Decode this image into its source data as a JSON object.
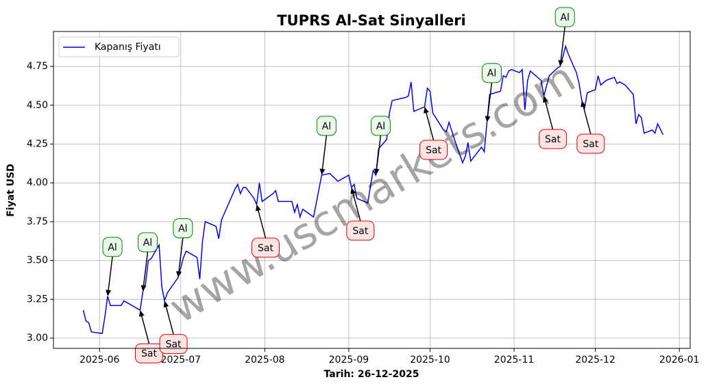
{
  "chart_data": {
    "type": "line",
    "title": "TUPRS Al-Sat Sinyalleri",
    "xlabel": "Tarih: 26-12-2025",
    "ylabel": "Fiyat USD",
    "watermark": "www.uscmarkets.com",
    "grid": true,
    "legend": "upper left",
    "xlim": [
      "2025-05-15",
      "2026-01-05"
    ],
    "ylim": [
      2.934,
      4.975
    ],
    "xticks": [
      {
        "value": "2025-06-01",
        "label": "2025-06"
      },
      {
        "value": "2025-07-01",
        "label": "2025-07"
      },
      {
        "value": "2025-08-01",
        "label": "2025-08"
      },
      {
        "value": "2025-09-01",
        "label": "2025-09"
      },
      {
        "value": "2025-10-01",
        "label": "2025-10"
      },
      {
        "value": "2025-11-01",
        "label": "2025-11"
      },
      {
        "value": "2025-12-01",
        "label": "2025-12"
      },
      {
        "value": "2026-01-01",
        "label": "2026-01"
      }
    ],
    "yticks": [
      {
        "value": 3,
        "label": "3.00"
      },
      {
        "value": 3.25,
        "label": "3.25"
      },
      {
        "value": 3.5,
        "label": "3.50"
      },
      {
        "value": 3.75,
        "label": "3.75"
      },
      {
        "value": 4,
        "label": "4.00"
      },
      {
        "value": 4.25,
        "label": "4.25"
      },
      {
        "value": 4.5,
        "label": "4.50"
      },
      {
        "value": 4.75,
        "label": "4.75"
      }
    ],
    "x": [
      "2025-05-26",
      "2025-05-27",
      "2025-05-28",
      "2025-05-29",
      "2025-06-02",
      "2025-06-03",
      "2025-06-04",
      "2025-06-05",
      "2025-06-09",
      "2025-06-10",
      "2025-06-16",
      "2025-06-17",
      "2025-06-18",
      "2025-06-19",
      "2025-06-20",
      "2025-06-23",
      "2025-06-24",
      "2025-06-25",
      "2025-06-26",
      "2025-06-30",
      "2025-07-02",
      "2025-07-03",
      "2025-07-07",
      "2025-07-08",
      "2025-07-09",
      "2025-07-10",
      "2025-07-14",
      "2025-07-15",
      "2025-07-16",
      "2025-07-21",
      "2025-07-22",
      "2025-07-23",
      "2025-07-24",
      "2025-07-25",
      "2025-07-28",
      "2025-07-29",
      "2025-07-30",
      "2025-07-31",
      "2025-08-04",
      "2025-08-05",
      "2025-08-06",
      "2025-08-11",
      "2025-08-12",
      "2025-08-13",
      "2025-08-14",
      "2025-08-15",
      "2025-08-19",
      "2025-08-22",
      "2025-08-25",
      "2025-08-28",
      "2025-08-29",
      "2025-09-01",
      "2025-09-02",
      "2025-09-03",
      "2025-09-04",
      "2025-09-08",
      "2025-09-09",
      "2025-09-10",
      "2025-09-11",
      "2025-09-12",
      "2025-09-15",
      "2025-09-16",
      "2025-09-17",
      "2025-09-22",
      "2025-09-23",
      "2025-09-24",
      "2025-09-25",
      "2025-09-29",
      "2025-09-30",
      "2025-10-01",
      "2025-10-02",
      "2025-10-06",
      "2025-10-07",
      "2025-10-08",
      "2025-10-10",
      "2025-10-13",
      "2025-10-14",
      "2025-10-15",
      "2025-10-16",
      "2025-10-20",
      "2025-10-21",
      "2025-10-22",
      "2025-10-23",
      "2025-10-27",
      "2025-10-28",
      "2025-10-29",
      "2025-10-30",
      "2025-10-31",
      "2025-11-03",
      "2025-11-04",
      "2025-11-05",
      "2025-11-06",
      "2025-11-07",
      "2025-11-11",
      "2025-11-12",
      "2025-11-14",
      "2025-11-17",
      "2025-11-18",
      "2025-11-19",
      "2025-11-20",
      "2025-11-21",
      "2025-11-24",
      "2025-11-25",
      "2025-11-26",
      "2025-11-27",
      "2025-11-28",
      "2025-12-01",
      "2025-12-02",
      "2025-12-03",
      "2025-12-05",
      "2025-12-08",
      "2025-12-09",
      "2025-12-10",
      "2025-12-12",
      "2025-12-15",
      "2025-12-16",
      "2025-12-17",
      "2025-12-18",
      "2025-12-19",
      "2025-12-22",
      "2025-12-23",
      "2025-12-24",
      "2025-12-26"
    ],
    "series": [
      {
        "name": "Kapanış Fiyatı",
        "color": "#0000ee",
        "values": [
          3.18,
          3.11,
          3.1,
          3.04,
          3.03,
          3.14,
          3.27,
          3.21,
          3.21,
          3.24,
          3.18,
          3.3,
          3.35,
          3.5,
          3.51,
          3.6,
          3.33,
          3.24,
          3.29,
          3.39,
          3.52,
          3.56,
          3.52,
          3.38,
          3.62,
          3.75,
          3.72,
          3.64,
          3.76,
          3.96,
          3.99,
          3.93,
          3.97,
          3.97,
          3.9,
          3.86,
          4.0,
          3.88,
          3.93,
          3.95,
          3.88,
          3.88,
          3.81,
          3.86,
          3.78,
          3.83,
          3.78,
          4.05,
          4.06,
          4.01,
          4.02,
          4.05,
          3.97,
          3.99,
          3.9,
          3.87,
          3.98,
          4.08,
          4.05,
          4.22,
          4.28,
          4.45,
          4.53,
          4.55,
          4.56,
          4.65,
          4.46,
          4.49,
          4.61,
          4.59,
          4.45,
          4.34,
          4.33,
          4.39,
          4.28,
          4.13,
          4.17,
          4.26,
          4.14,
          4.23,
          4.2,
          4.39,
          4.57,
          4.59,
          4.69,
          4.68,
          4.72,
          4.73,
          4.71,
          4.73,
          4.47,
          4.66,
          4.72,
          4.66,
          4.56,
          4.69,
          4.74,
          4.75,
          4.81,
          4.88,
          4.83,
          4.71,
          4.64,
          4.53,
          4.48,
          4.58,
          4.6,
          4.69,
          4.63,
          4.66,
          4.68,
          4.64,
          4.65,
          4.63,
          4.57,
          4.38,
          4.44,
          4.42,
          4.32,
          4.34,
          4.32,
          4.38,
          4.31
        ]
      }
    ],
    "annotations": [
      {
        "text": "Al",
        "x": "2025-06-04",
        "y": 3.27
      },
      {
        "text": "Al",
        "x": "2025-06-17",
        "y": 3.3
      },
      {
        "text": "Al",
        "x": "2025-06-30",
        "y": 3.39
      },
      {
        "text": "Al",
        "x": "2025-08-22",
        "y": 4.05
      },
      {
        "text": "Al",
        "x": "2025-09-11",
        "y": 4.05
      },
      {
        "text": "Al",
        "x": "2025-10-22",
        "y": 4.39
      },
      {
        "text": "Al",
        "x": "2025-11-18",
        "y": 4.75
      },
      {
        "text": "Sat",
        "x": "2025-06-16",
        "y": 3.18
      },
      {
        "text": "Sat",
        "x": "2025-06-25",
        "y": 3.24
      },
      {
        "text": "Sat",
        "x": "2025-07-29",
        "y": 3.86
      },
      {
        "text": "Sat",
        "x": "2025-09-02",
        "y": 3.97
      },
      {
        "text": "Sat",
        "x": "2025-09-29",
        "y": 4.49
      },
      {
        "text": "Sat",
        "x": "2025-11-12",
        "y": 4.56
      },
      {
        "text": "Sat",
        "x": "2025-11-26",
        "y": 4.53
      }
    ]
  }
}
